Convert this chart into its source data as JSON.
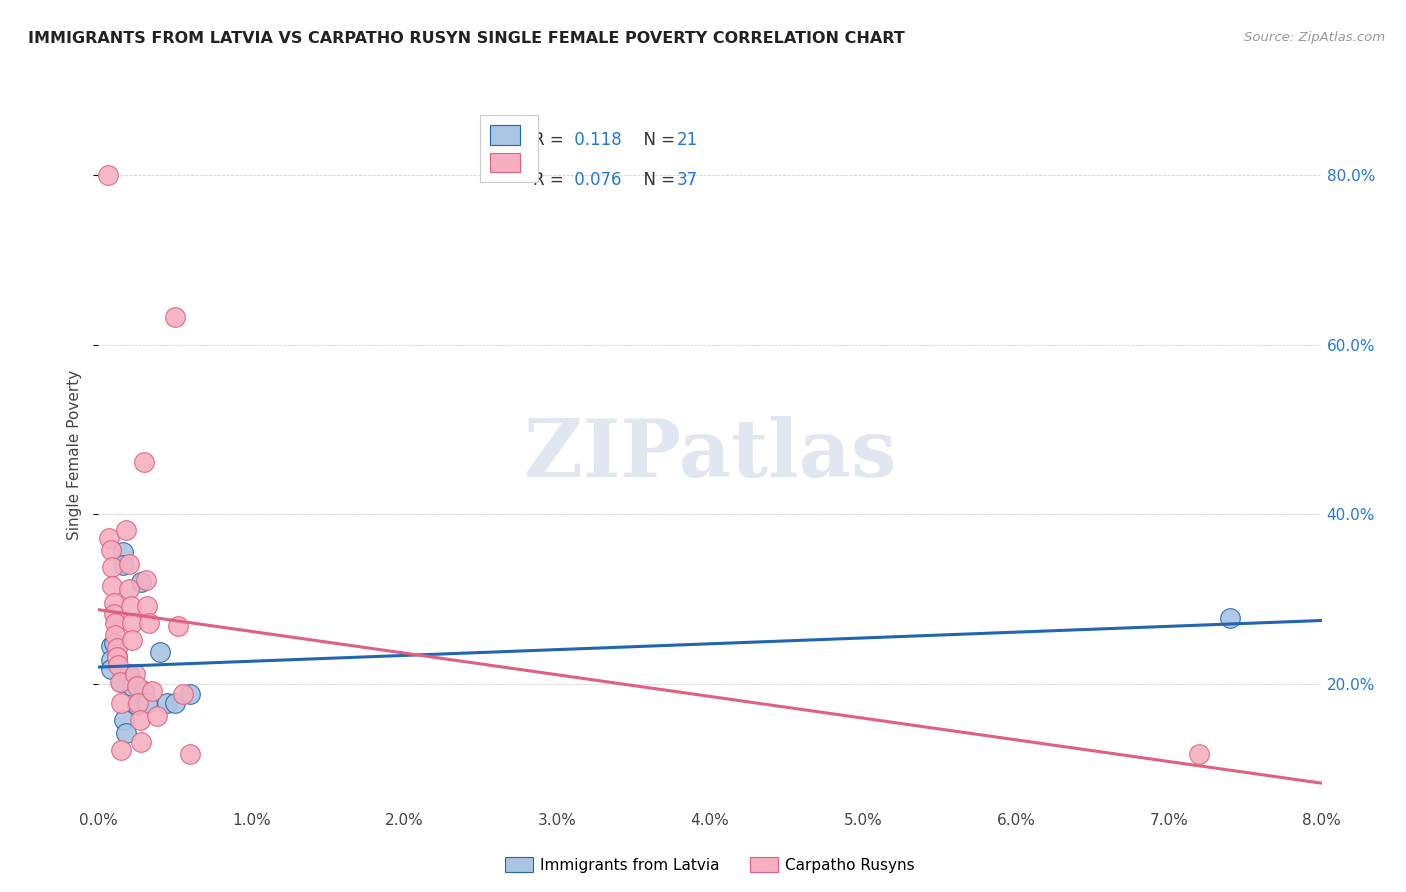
{
  "title": "IMMIGRANTS FROM LATVIA VS CARPATHO RUSYN SINGLE FEMALE POVERTY CORRELATION CHART",
  "source": "Source: ZipAtlas.com",
  "ylabel": "Single Female Poverty",
  "ylabel_ticks": [
    "20.0%",
    "40.0%",
    "60.0%",
    "80.0%"
  ],
  "ylabel_tick_vals": [
    0.2,
    0.4,
    0.6,
    0.8
  ],
  "xlim": [
    0.0,
    0.08
  ],
  "ylim": [
    0.06,
    0.88
  ],
  "legend_label1": "Immigrants from Latvia",
  "legend_label2": "Carpatho Rusyns",
  "R1": "0.118",
  "N1": "21",
  "R2": "0.076",
  "N2": "37",
  "color_blue": "#aac4e2",
  "color_pink": "#f5afc0",
  "color_blue_line": "#2266b0",
  "color_pink_line": "#e06080",
  "color_blue_text": "#2277dd",
  "background": "#ffffff",
  "watermark_text": "ZIPatlas",
  "scatter_blue": [
    [
      0.0008,
      0.245
    ],
    [
      0.0008,
      0.228
    ],
    [
      0.0008,
      0.218
    ],
    [
      0.001,
      0.248
    ],
    [
      0.0012,
      0.232
    ],
    [
      0.0015,
      0.202
    ],
    [
      0.0016,
      0.355
    ],
    [
      0.0016,
      0.34
    ],
    [
      0.0017,
      0.158
    ],
    [
      0.0018,
      0.142
    ],
    [
      0.002,
      0.212
    ],
    [
      0.0022,
      0.198
    ],
    [
      0.0025,
      0.175
    ],
    [
      0.0028,
      0.32
    ],
    [
      0.003,
      0.192
    ],
    [
      0.0032,
      0.178
    ],
    [
      0.004,
      0.238
    ],
    [
      0.0045,
      0.178
    ],
    [
      0.005,
      0.178
    ],
    [
      0.006,
      0.188
    ],
    [
      0.074,
      0.278
    ]
  ],
  "scatter_pink": [
    [
      0.0006,
      0.8
    ],
    [
      0.0007,
      0.372
    ],
    [
      0.0008,
      0.358
    ],
    [
      0.0009,
      0.338
    ],
    [
      0.0009,
      0.315
    ],
    [
      0.001,
      0.295
    ],
    [
      0.001,
      0.282
    ],
    [
      0.0011,
      0.272
    ],
    [
      0.0011,
      0.258
    ],
    [
      0.0012,
      0.242
    ],
    [
      0.0012,
      0.232
    ],
    [
      0.0013,
      0.222
    ],
    [
      0.0014,
      0.202
    ],
    [
      0.0015,
      0.178
    ],
    [
      0.0015,
      0.122
    ],
    [
      0.0018,
      0.382
    ],
    [
      0.002,
      0.342
    ],
    [
      0.002,
      0.312
    ],
    [
      0.0021,
      0.292
    ],
    [
      0.0022,
      0.272
    ],
    [
      0.0022,
      0.252
    ],
    [
      0.0024,
      0.212
    ],
    [
      0.0025,
      0.198
    ],
    [
      0.0026,
      0.178
    ],
    [
      0.0027,
      0.158
    ],
    [
      0.0028,
      0.132
    ],
    [
      0.003,
      0.462
    ],
    [
      0.0031,
      0.322
    ],
    [
      0.0032,
      0.292
    ],
    [
      0.0033,
      0.272
    ],
    [
      0.0035,
      0.192
    ],
    [
      0.0038,
      0.162
    ],
    [
      0.005,
      0.632
    ],
    [
      0.0052,
      0.268
    ],
    [
      0.0055,
      0.188
    ],
    [
      0.006,
      0.118
    ],
    [
      0.072,
      0.118
    ]
  ]
}
